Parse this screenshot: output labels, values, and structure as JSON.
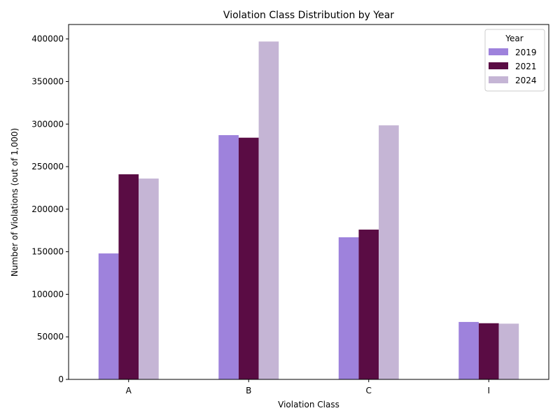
{
  "chart_data": {
    "type": "bar",
    "title": "Violation Class Distribution by Year",
    "xlabel": "Violation Class",
    "ylabel": "Number of Violations (out of 1,000)",
    "categories": [
      "A",
      "B",
      "C",
      "I"
    ],
    "series": [
      {
        "name": "2019",
        "color": "#9e82dc",
        "values": [
          148000,
          287000,
          167000,
          67500
        ]
      },
      {
        "name": "2021",
        "color": "#5a0c44",
        "values": [
          241000,
          284000,
          176000,
          66000
        ]
      },
      {
        "name": "2024",
        "color": "#c5b5d5",
        "values": [
          236000,
          397000,
          298500,
          65500
        ]
      }
    ],
    "ylim": [
      0,
      417000
    ],
    "yticks": [
      0,
      50000,
      100000,
      150000,
      200000,
      250000,
      300000,
      350000,
      400000
    ],
    "grid": false,
    "legend": {
      "title": "Year",
      "placement": "top-right"
    }
  }
}
